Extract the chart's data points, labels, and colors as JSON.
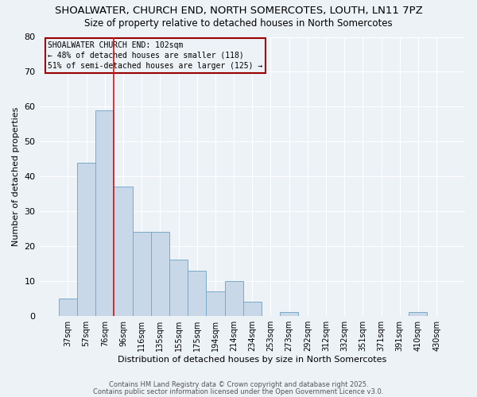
{
  "title": "SHOALWATER, CHURCH END, NORTH SOMERCOTES, LOUTH, LN11 7PZ",
  "subtitle": "Size of property relative to detached houses in North Somercotes",
  "xlabel": "Distribution of detached houses by size in North Somercotes",
  "ylabel": "Number of detached properties",
  "bar_labels": [
    "37sqm",
    "57sqm",
    "76sqm",
    "96sqm",
    "116sqm",
    "135sqm",
    "155sqm",
    "175sqm",
    "194sqm",
    "214sqm",
    "234sqm",
    "253sqm",
    "273sqm",
    "292sqm",
    "312sqm",
    "332sqm",
    "351sqm",
    "371sqm",
    "391sqm",
    "410sqm",
    "430sqm"
  ],
  "bar_values": [
    5,
    44,
    59,
    37,
    24,
    24,
    16,
    13,
    7,
    10,
    4,
    0,
    1,
    0,
    0,
    0,
    0,
    0,
    0,
    1,
    0
  ],
  "bar_color": "#c8d8e8",
  "bar_edge_color": "#7aaac8",
  "vline_pos": 2.5,
  "vline_color": "red",
  "ylim": [
    0,
    80
  ],
  "yticks": [
    0,
    10,
    20,
    30,
    40,
    50,
    60,
    70,
    80
  ],
  "annotation_title": "SHOALWATER CHURCH END: 102sqm",
  "annotation_line1": "← 48% of detached houses are smaller (118)",
  "annotation_line2": "51% of semi-detached houses are larger (125) →",
  "annotation_box_color": "#990000",
  "background_color": "#edf2f7",
  "grid_color": "#ffffff",
  "title_fontsize": 9.5,
  "subtitle_fontsize": 8.5,
  "footer1": "Contains HM Land Registry data © Crown copyright and database right 2025.",
  "footer2": "Contains public sector information licensed under the Open Government Licence v3.0."
}
